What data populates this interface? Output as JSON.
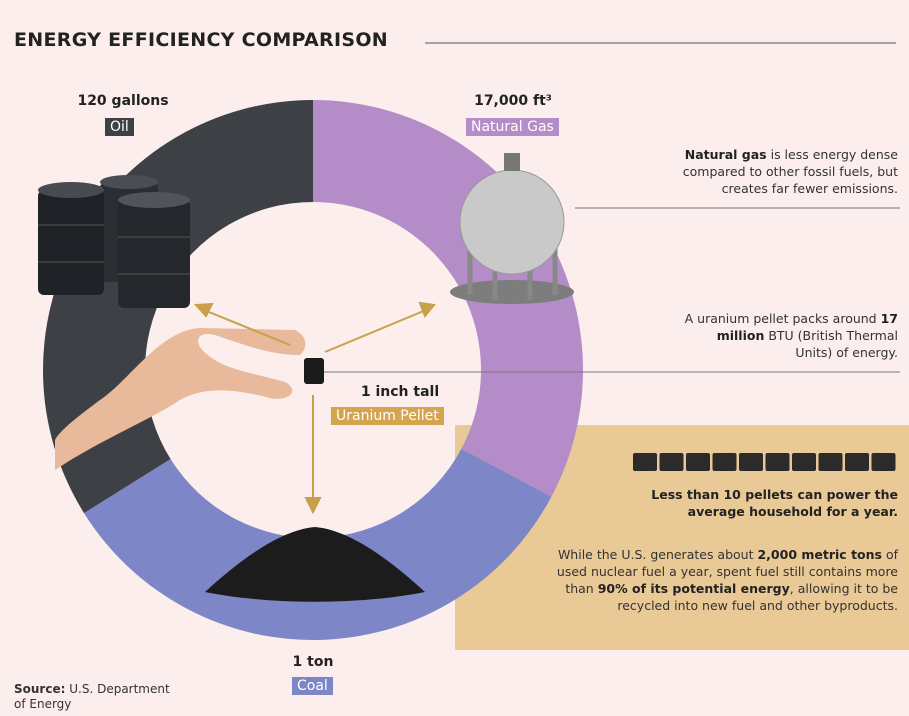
{
  "title": "ENERGY EFFICIENCY COMPARISON",
  "oil": {
    "amount": "120 gallons",
    "label": "Oil"
  },
  "natural_gas": {
    "amount": "17,000 ft³",
    "label": "Natural Gas"
  },
  "pellet": {
    "amount": "1 inch tall",
    "label": "Uranium Pellet"
  },
  "coal": {
    "amount": "1 ton",
    "label": "Coal"
  },
  "notes": {
    "natural_gas": [
      {
        "text": "Natural gas",
        "bold": true
      },
      {
        "text": " is less energy dense compared to other fossil fuels, but creates far fewer emissions.",
        "bold": false
      }
    ],
    "uranium": [
      {
        "text": "A uranium pellet packs around ",
        "bold": false
      },
      {
        "text": "17 million",
        "bold": true
      },
      {
        "text": " BTU (British Thermal Units) of energy.",
        "bold": false
      }
    ],
    "household": [
      {
        "text": "Less than 10 pellets can power the average household for a year.",
        "bold": true
      }
    ],
    "fuel": [
      {
        "text": "While the U.S. generates about ",
        "bold": false
      },
      {
        "text": "2,000 metric tons",
        "bold": true
      },
      {
        "text": " of used nuclear fuel a year, spent fuel still contains more than ",
        "bold": false
      },
      {
        "text": "90% of its potential energy",
        "bold": true
      },
      {
        "text": ", allowing it to be recycled into new fuel and other byproducts.",
        "bold": false
      }
    ]
  },
  "source": {
    "label": "Source:",
    "text": "U.S. Department of Energy"
  }
}
